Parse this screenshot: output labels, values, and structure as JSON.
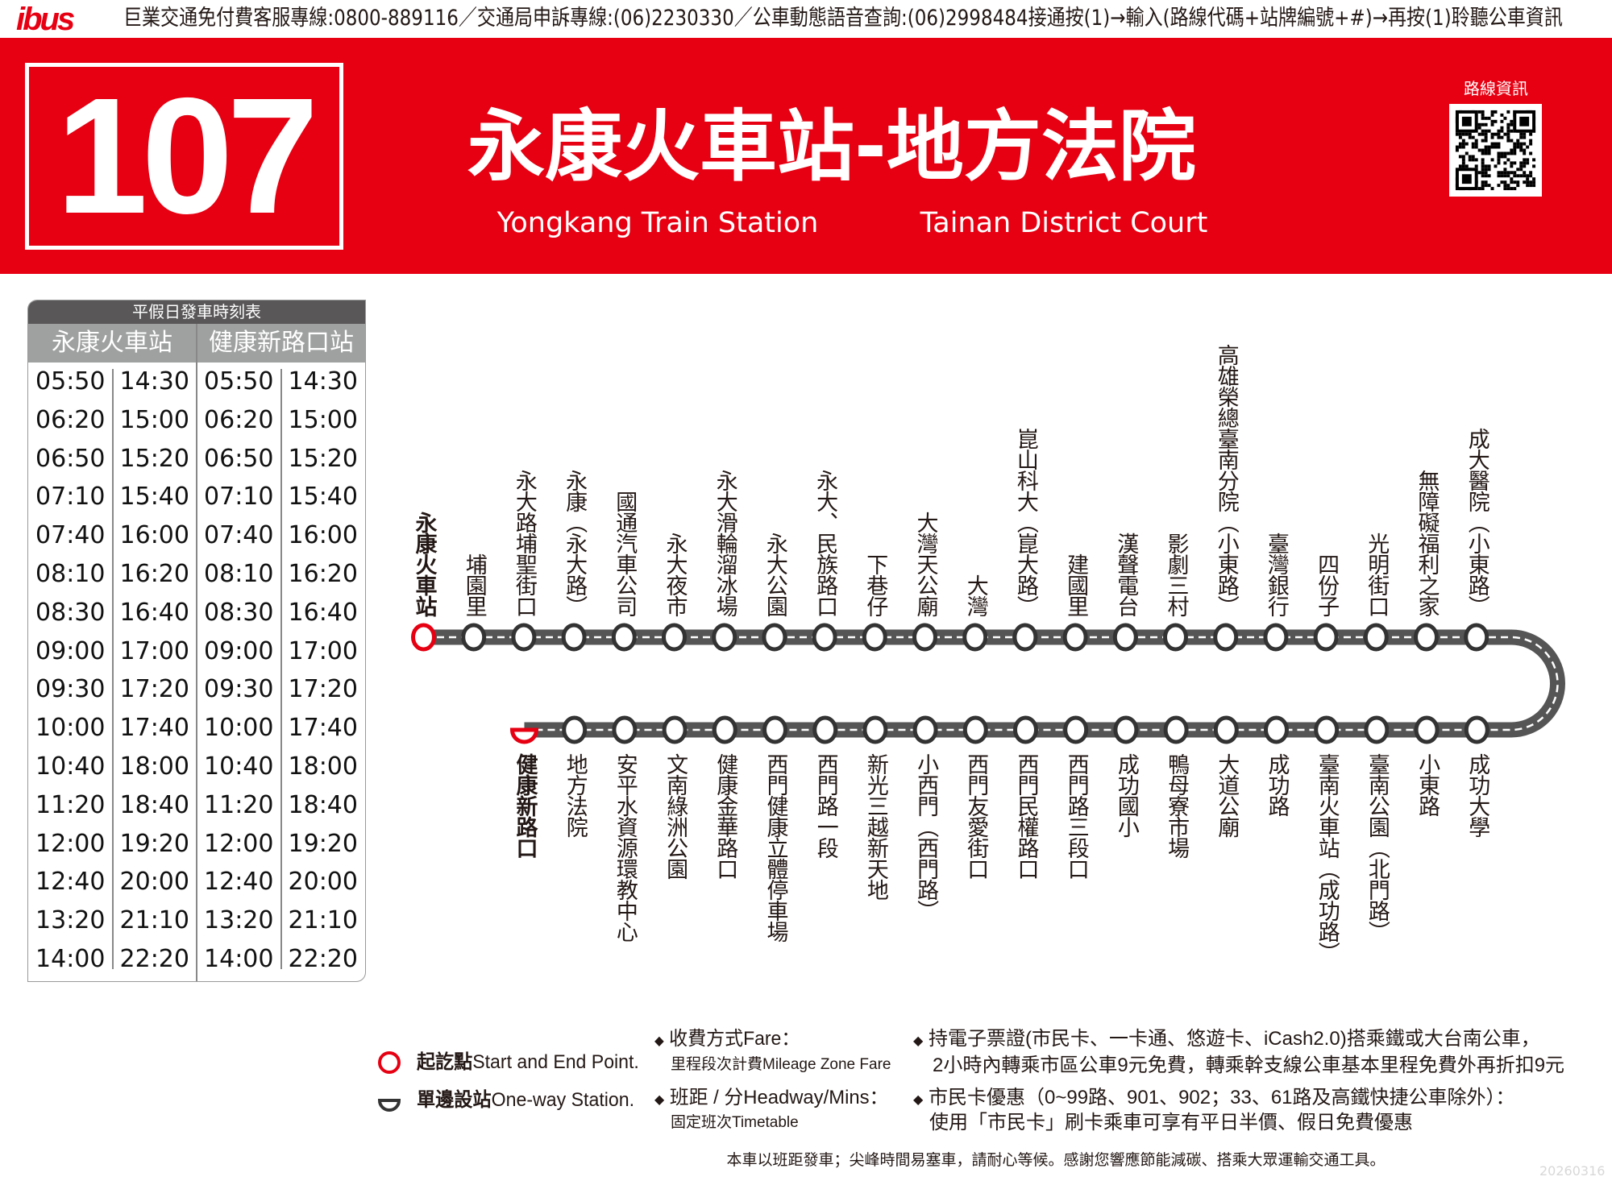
{
  "topbar": {
    "logo": "ibus",
    "hotline": "巨業交通免付費客服專線:0800-889116／交通局申訴專線:(06)2230330／公車動態語音查詢:(06)2998484接通按(1)→輸入(路線代碼+站牌編號+#)→再按(1)聆聽公車資訊"
  },
  "header": {
    "route_number": "107",
    "title": "永康火車站-地方法院",
    "origin_en": "Yongkang Train Station",
    "destination_en": "Tainan District Court",
    "qr_label": "路線資訊"
  },
  "timetable": {
    "title": "平假日發車時刻表",
    "columns": [
      "永康火車站",
      "健康新路口站"
    ],
    "rows": [
      [
        "05:50",
        "14:30",
        "05:50",
        "14:30"
      ],
      [
        "06:20",
        "15:00",
        "06:20",
        "15:00"
      ],
      [
        "06:50",
        "15:20",
        "06:50",
        "15:20"
      ],
      [
        "07:10",
        "15:40",
        "07:10",
        "15:40"
      ],
      [
        "07:40",
        "16:00",
        "07:40",
        "16:00"
      ],
      [
        "08:10",
        "16:20",
        "08:10",
        "16:20"
      ],
      [
        "08:30",
        "16:40",
        "08:30",
        "16:40"
      ],
      [
        "09:00",
        "17:00",
        "09:00",
        "17:00"
      ],
      [
        "09:30",
        "17:20",
        "09:30",
        "17:20"
      ],
      [
        "10:00",
        "17:40",
        "10:00",
        "17:40"
      ],
      [
        "10:40",
        "18:00",
        "10:40",
        "18:00"
      ],
      [
        "11:20",
        "18:40",
        "11:20",
        "18:40"
      ],
      [
        "12:00",
        "19:20",
        "12:00",
        "19:20"
      ],
      [
        "12:40",
        "20:00",
        "12:40",
        "20:00"
      ],
      [
        "13:20",
        "21:10",
        "13:20",
        "21:10"
      ],
      [
        "14:00",
        "22:20",
        "14:00",
        "22:20"
      ]
    ]
  },
  "route": {
    "outbound_stops": [
      "永康火車站",
      "埔園里",
      "永大路埔聖街口",
      "永康（永大路）",
      "國通汽車公司",
      "永大夜市",
      "永大滑輪溜冰場",
      "永大公園",
      "永大、民族路口",
      "下巷仔",
      "大灣天公廟",
      "大灣",
      "崑山科大（崑大路）",
      "建國里",
      "漢聲電台",
      "影劇三村",
      "高雄榮總臺南分院（小東路）",
      "臺灣銀行",
      "四份子",
      "光明街口",
      "無障礙福利之家",
      "成大醫院（小東路）"
    ],
    "return_stops": [
      "健康新路口",
      "地方法院",
      "安平水資源環教中心",
      "文南綠洲公園",
      "健康金華路口",
      "西門健康立體停車場",
      "西門路一段",
      "新光三越新天地",
      "小西門（西門路）",
      "西門友愛街口",
      "西門民權路口",
      "西門路三段口",
      "成功國小",
      "鴨母寮市場",
      "大道公廟",
      "成功路",
      "臺南火車站（成功路）",
      "臺南公園（北門路）",
      "小東路",
      "成功大學"
    ]
  },
  "legend": {
    "terminal_bold": "起訖點",
    "terminal_en": "Start and End Point.",
    "oneway_bold": "單邊設站",
    "oneway_en": "One-way Station.",
    "fare_title": "收費方式Fare：",
    "fare_detail": "里程段次計費Mileage Zone Fare",
    "headway_title": "班距 / 分Headway/Mins：",
    "headway_detail": "固定班次Timetable",
    "note1_line1": "持電子票證(市民卡、一卡通、悠遊卡、iCash2.0)搭乘鐵或大台南公車，",
    "note1_line2": "2小時內轉乘市區公車9元免費，轉乘幹支線公車基本里程免費外再折扣9元",
    "note2_line1": "市民卡優惠（0~99路、901、902；33、61路及高鐵快捷公車除外）：",
    "note2_line2": "使用「市民卡」刷卡乘車可享有平日半價、假日免費優惠",
    "diamond": "◆"
  },
  "footer": {
    "notice": "本車以班距發車；尖峰時間易塞車，請耐心等候。感謝您響應節能減碳、搭乘大眾運輸交通工具。",
    "stamp": "20260316"
  },
  "colors": {
    "brand_red": "#e60012",
    "road": "#555555",
    "header_gray": "#595757",
    "column_gray": "#9fa0a0"
  }
}
